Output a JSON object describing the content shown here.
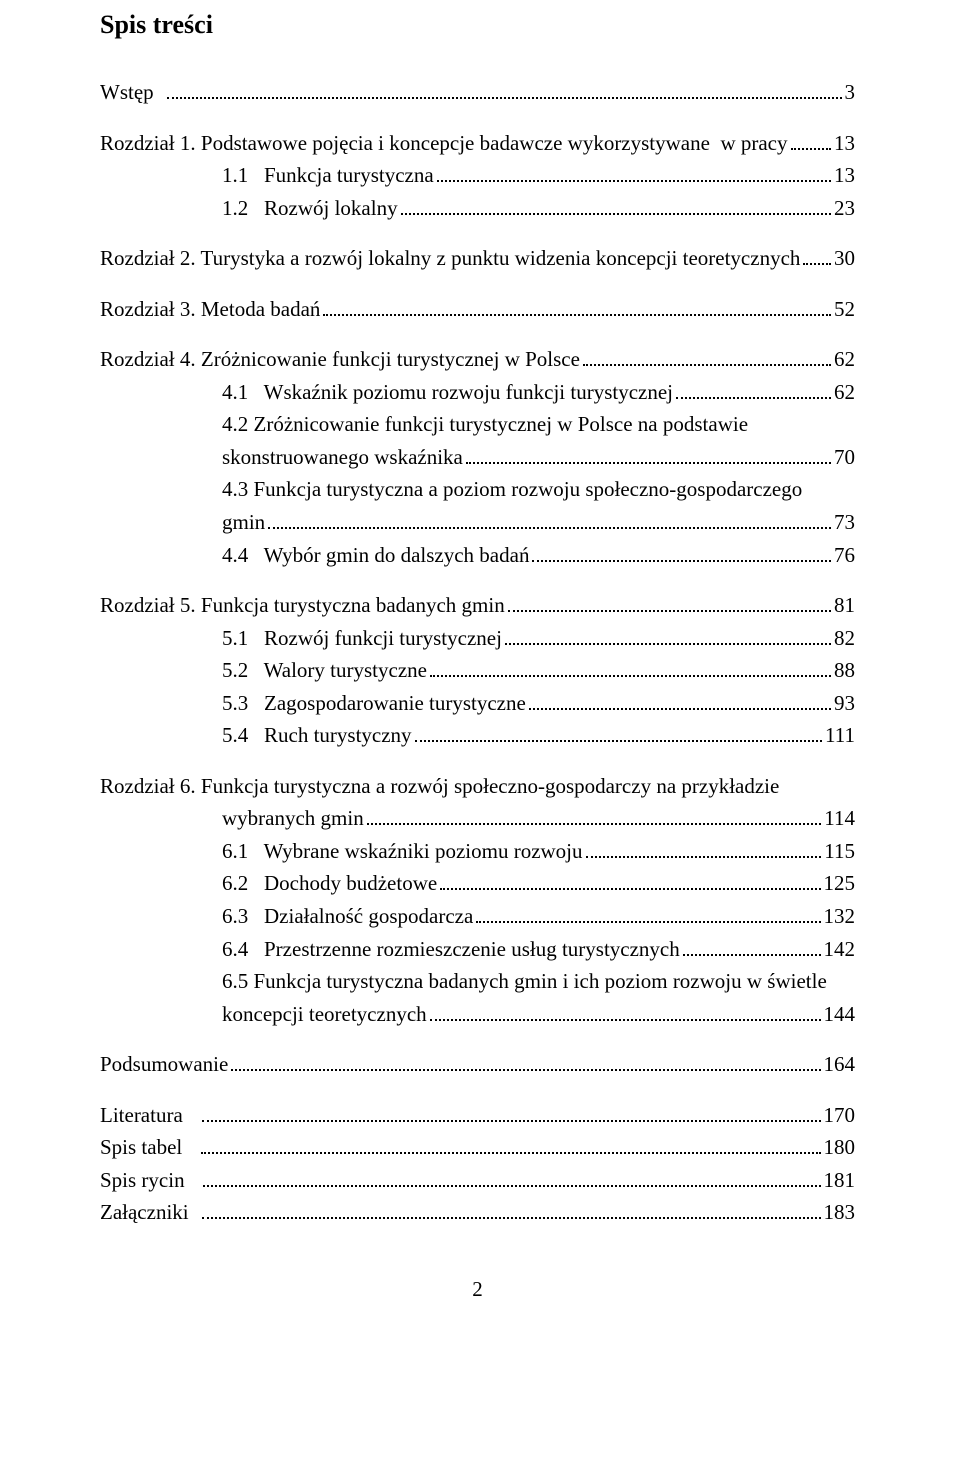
{
  "title": "Spis treści",
  "pageNumber": "2",
  "entries": [
    {
      "type": "line",
      "indent": 0,
      "label": "Wstęp  ",
      "page": "3",
      "gapAfter": true
    },
    {
      "type": "line",
      "indent": 0,
      "label": "Rozdział 1. Podstawowe pojęcia i koncepcje badawcze wykorzystywane  w pracy",
      "page": "13"
    },
    {
      "type": "line",
      "indent": 1,
      "label": "1.1   Funkcja turystyczna",
      "page": "13"
    },
    {
      "type": "line",
      "indent": 1,
      "label": "1.2   Rozwój lokalny",
      "page": "23",
      "gapAfter": true
    },
    {
      "type": "line",
      "indent": 0,
      "label": "Rozdział 2. Turystyka a rozwój lokalny z punktu widzenia koncepcji teoretycznych",
      "page": "30",
      "gapAfter": true
    },
    {
      "type": "line",
      "indent": 0,
      "label": "Rozdział 3. Metoda badań",
      "page": "52",
      "gapAfter": true
    },
    {
      "type": "line",
      "indent": 0,
      "label": "Rozdział 4. Zróżnicowanie funkcji turystycznej w Polsce",
      "page": "62"
    },
    {
      "type": "line",
      "indent": 1,
      "label": "4.1   Wskaźnik poziomu rozwoju funkcji turystycznej",
      "page": "62"
    },
    {
      "type": "plain",
      "indent": 1,
      "text": "4.2   Zróżnicowanie funkcji turystycznej w Polsce na podstawie"
    },
    {
      "type": "line",
      "indent": 1,
      "label": "skonstruowanego wskaźnika",
      "page": "70"
    },
    {
      "type": "plain",
      "indent": 1,
      "text": "4.3   Funkcja turystyczna a poziom rozwoju społeczno-gospodarczego"
    },
    {
      "type": "line",
      "indent": 1,
      "label": "gmin",
      "page": "73"
    },
    {
      "type": "line",
      "indent": 1,
      "label": "4.4   Wybór gmin do dalszych badań",
      "page": "76",
      "gapAfter": true
    },
    {
      "type": "line",
      "indent": 0,
      "label": "Rozdział 5. Funkcja turystyczna badanych gmin",
      "page": "81"
    },
    {
      "type": "line",
      "indent": 1,
      "label": "5.1   Rozwój funkcji turystycznej",
      "page": "82"
    },
    {
      "type": "line",
      "indent": 1,
      "label": "5.2   Walory turystyczne",
      "page": "88"
    },
    {
      "type": "line",
      "indent": 1,
      "label": "5.3   Zagospodarowanie turystyczne",
      "page": "93"
    },
    {
      "type": "line",
      "indent": 1,
      "label": "5.4   Ruch turystyczny",
      "page": "111",
      "gapAfter": true
    },
    {
      "type": "plain",
      "indent": 0,
      "text": "Rozdział 6. Funkcja turystyczna a rozwój społeczno-gospodarczy na przykładzie"
    },
    {
      "type": "line",
      "indent": 1,
      "label": "wybranych gmin",
      "page": "114"
    },
    {
      "type": "line",
      "indent": 1,
      "label": "6.1   Wybrane wskaźniki poziomu rozwoju",
      "page": "115"
    },
    {
      "type": "line",
      "indent": 1,
      "label": "6.2   Dochody budżetowe",
      "page": "125"
    },
    {
      "type": "line",
      "indent": 1,
      "label": "6.3   Działalność gospodarcza",
      "page": "132"
    },
    {
      "type": "line",
      "indent": 1,
      "label": "6.4   Przestrzenne rozmieszczenie usług turystycznych",
      "page": "142"
    },
    {
      "type": "plain",
      "indent": 1,
      "text": "6.5   Funkcja turystyczna badanych gmin i ich poziom rozwoju w świetle"
    },
    {
      "type": "line",
      "indent": 1,
      "label": "koncepcji teoretycznych",
      "page": "144",
      "gapAfter": true
    },
    {
      "type": "line",
      "indent": 0,
      "label": "Podsumowanie",
      "page": "164",
      "gapAfter": true
    },
    {
      "type": "line",
      "indent": 0,
      "label": "Literatura   ",
      "page": "170"
    },
    {
      "type": "line",
      "indent": 0,
      "label": "Spis tabel   ",
      "page": "180"
    },
    {
      "type": "line",
      "indent": 0,
      "label": "Spis rycin   ",
      "page": "181"
    },
    {
      "type": "line",
      "indent": 0,
      "label": "Załączniki  ",
      "page": "183"
    }
  ]
}
